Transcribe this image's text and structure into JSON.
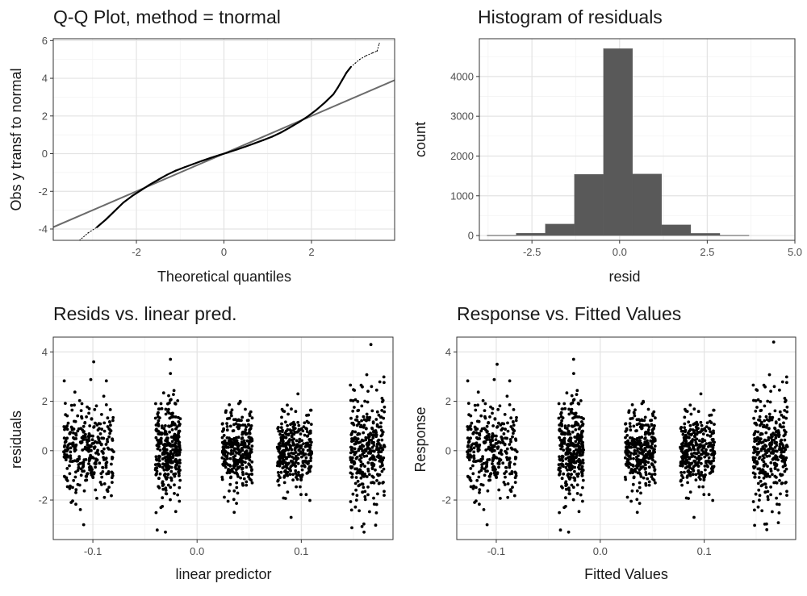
{
  "chart_data": [
    {
      "type": "scatter",
      "title": "Q-Q Plot, method = tnormal",
      "xlabel": "Theoretical quantiles",
      "ylabel": "Obs y transf to normal",
      "xlim": [
        -3.9,
        3.9
      ],
      "ylim": [
        -4.6,
        6.1
      ],
      "xticks": [
        -2,
        0,
        2
      ],
      "yticks": [
        -4,
        -2,
        0,
        2,
        4,
        6
      ],
      "reference_line": {
        "slope": 1,
        "intercept": 0
      },
      "points": [
        [
          -3.5,
          -4.7
        ],
        [
          -3.3,
          -4.6
        ],
        [
          -3.1,
          -4.2
        ],
        [
          -2.9,
          -3.9
        ],
        [
          -2.7,
          -3.5
        ],
        [
          -2.5,
          -3.05
        ],
        [
          -2.3,
          -2.6
        ],
        [
          -2.1,
          -2.25
        ],
        [
          -1.9,
          -1.95
        ],
        [
          -1.7,
          -1.65
        ],
        [
          -1.5,
          -1.38
        ],
        [
          -1.3,
          -1.12
        ],
        [
          -1.1,
          -0.9
        ],
        [
          -0.9,
          -0.72
        ],
        [
          -0.7,
          -0.55
        ],
        [
          -0.5,
          -0.38
        ],
        [
          -0.3,
          -0.22
        ],
        [
          -0.1,
          -0.07
        ],
        [
          0.1,
          0.07
        ],
        [
          0.3,
          0.22
        ],
        [
          0.5,
          0.38
        ],
        [
          0.7,
          0.55
        ],
        [
          0.9,
          0.72
        ],
        [
          1.1,
          0.9
        ],
        [
          1.3,
          1.12
        ],
        [
          1.5,
          1.38
        ],
        [
          1.7,
          1.65
        ],
        [
          1.9,
          1.95
        ],
        [
          2.1,
          2.3
        ],
        [
          2.3,
          2.7
        ],
        [
          2.5,
          3.15
        ],
        [
          2.6,
          3.5
        ],
        [
          2.7,
          3.9
        ],
        [
          2.8,
          4.3
        ],
        [
          2.9,
          4.6
        ],
        [
          3.0,
          4.8
        ],
        [
          3.1,
          5.0
        ],
        [
          3.25,
          5.2
        ],
        [
          3.4,
          5.35
        ],
        [
          3.5,
          5.45
        ],
        [
          3.55,
          5.85
        ]
      ]
    },
    {
      "type": "bar",
      "title": "Histogram of residuals",
      "xlabel": "resid",
      "ylabel": "count",
      "xlim": [
        -4.0,
        5.0
      ],
      "ylim": [
        -120,
        4950
      ],
      "xticks": [
        -2.5,
        0.0,
        2.5,
        5.0
      ],
      "xtick_labels": [
        "-2.5",
        "0.0",
        "2.5",
        "5.0"
      ],
      "yticks": [
        0,
        1000,
        2000,
        3000,
        4000
      ],
      "bins": [
        {
          "x0": -3.78,
          "x1": -2.95,
          "count": 10
        },
        {
          "x0": -2.95,
          "x1": -2.12,
          "count": 60
        },
        {
          "x0": -2.12,
          "x1": -1.29,
          "count": 290
        },
        {
          "x0": -1.29,
          "x1": -0.46,
          "count": 1540
        },
        {
          "x0": -0.46,
          "x1": 0.37,
          "count": 4700
        },
        {
          "x0": 0.37,
          "x1": 1.2,
          "count": 1550
        },
        {
          "x0": 1.2,
          "x1": 2.03,
          "count": 270
        },
        {
          "x0": 2.03,
          "x1": 2.86,
          "count": 55
        },
        {
          "x0": 2.86,
          "x1": 3.69,
          "count": 10
        }
      ]
    },
    {
      "type": "scatter",
      "title": "Resids vs. linear pred.",
      "xlabel": "linear predictor",
      "ylabel": "residuals",
      "xlim": [
        -0.138,
        0.188
      ],
      "ylim": [
        -3.6,
        4.6
      ],
      "xticks": [
        -0.1,
        0.0,
        0.1
      ],
      "xtick_labels": [
        "-0.1",
        "0.0",
        "0.1"
      ],
      "yticks": [
        -2,
        0,
        2,
        4
      ],
      "clusters": [
        {
          "x_min": -0.128,
          "x_max": -0.08,
          "sd": 0.95,
          "y_min": -3.0,
          "y_max": 3.6
        },
        {
          "x_min": -0.04,
          "x_max": -0.016,
          "sd": 1.05,
          "y_min": -3.3,
          "y_max": 3.7
        },
        {
          "x_min": 0.024,
          "x_max": 0.053,
          "sd": 0.7,
          "y_min": -2.5,
          "y_max": 2.0
        },
        {
          "x_min": 0.077,
          "x_max": 0.11,
          "sd": 0.75,
          "y_min": -2.7,
          "y_max": 2.3
        },
        {
          "x_min": 0.147,
          "x_max": 0.18,
          "sd": 1.15,
          "y_min": -3.3,
          "y_max": 4.3
        }
      ]
    },
    {
      "type": "scatter",
      "title": "Response vs. Fitted Values",
      "xlabel": "Fitted Values",
      "ylabel": "Response",
      "xlim": [
        -0.138,
        0.188
      ],
      "ylim": [
        -3.6,
        4.6
      ],
      "xticks": [
        -0.1,
        0.0,
        0.1
      ],
      "xtick_labels": [
        "-0.1",
        "0.0",
        "0.1"
      ],
      "yticks": [
        -2,
        0,
        2,
        4
      ],
      "clusters": [
        {
          "x_min": -0.128,
          "x_max": -0.08,
          "sd": 0.95,
          "y_min": -3.0,
          "y_max": 3.5
        },
        {
          "x_min": -0.04,
          "x_max": -0.016,
          "sd": 1.05,
          "y_min": -3.3,
          "y_max": 3.7
        },
        {
          "x_min": 0.024,
          "x_max": 0.053,
          "sd": 0.7,
          "y_min": -2.5,
          "y_max": 2.0
        },
        {
          "x_min": 0.077,
          "x_max": 0.11,
          "sd": 0.75,
          "y_min": -2.7,
          "y_max": 2.3
        },
        {
          "x_min": 0.147,
          "x_max": 0.18,
          "sd": 1.15,
          "y_min": -3.2,
          "y_max": 4.4
        }
      ]
    }
  ],
  "colors": {
    "points": "#000000",
    "bars": "#595959",
    "reference_line": "#6b6b6b",
    "frame": "#333333",
    "grid_major": "#e3e3e3",
    "grid_minor": "#f1f1f1",
    "background": "#ffffff"
  }
}
